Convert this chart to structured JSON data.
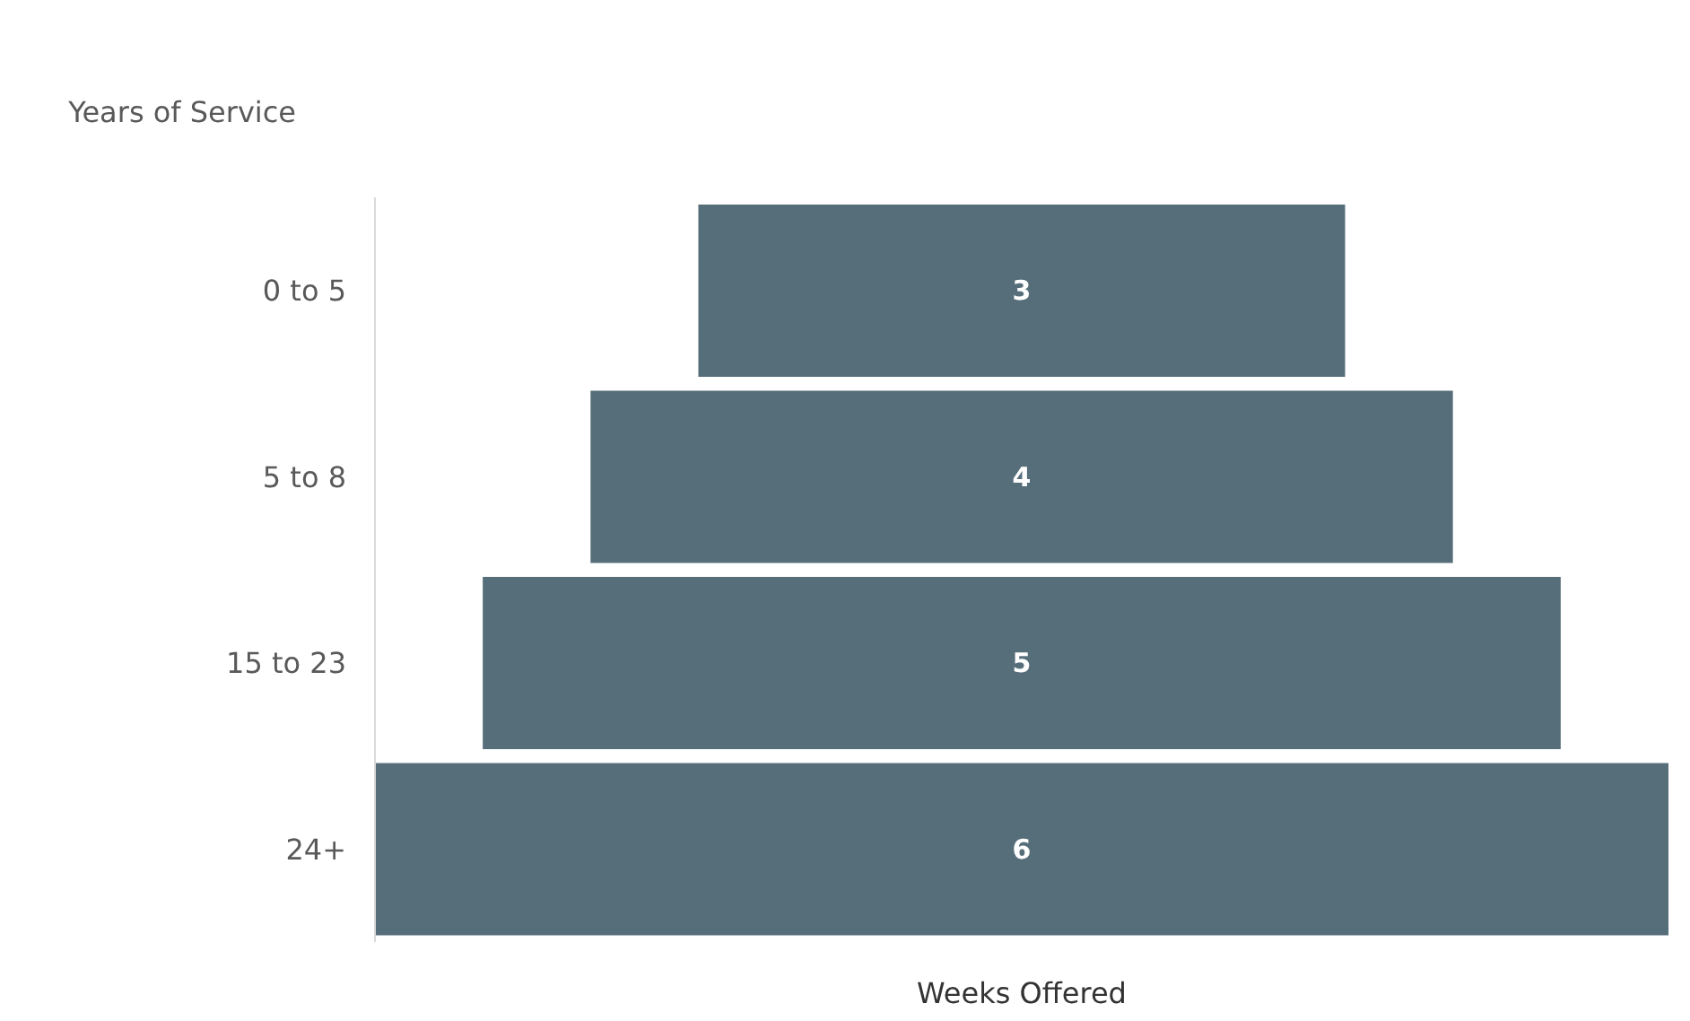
{
  "chart_data": {
    "type": "other",
    "ylabel": "Years of Service",
    "xlabel": "Weeks Offered",
    "categories": [
      "0 to 5",
      "5 to 8",
      "15 to 23",
      "24+"
    ],
    "values": [
      3,
      4,
      5,
      6
    ],
    "color": "#566e7a",
    "data_labels": true
  }
}
